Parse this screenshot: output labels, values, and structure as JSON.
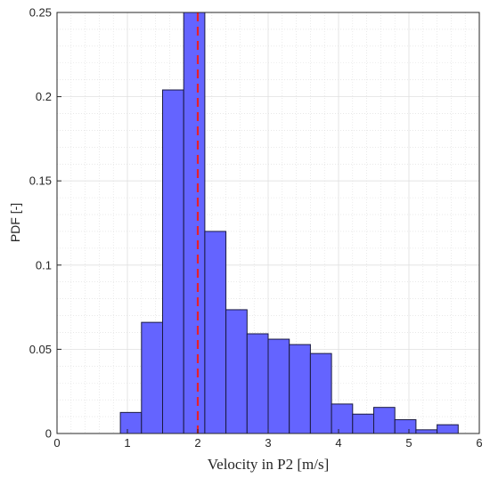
{
  "chart_data": {
    "type": "bar",
    "subtype": "histogram",
    "xlabel": "Velocity in P2 [m/s]",
    "ylabel": "PDF [-]",
    "xlim": [
      0,
      6
    ],
    "ylim": [
      0,
      0.25
    ],
    "xticks": [
      0,
      1,
      2,
      3,
      4,
      5,
      6
    ],
    "yticks": [
      0,
      0.05,
      0.1,
      0.15,
      0.2,
      0.25
    ],
    "xtick_labels": [
      "0",
      "1",
      "2",
      "3",
      "4",
      "5",
      "6"
    ],
    "ytick_labels": [
      "0",
      "0.05",
      "0.1",
      "0.15",
      "0.2",
      "0.25"
    ],
    "grid": true,
    "minor_grid": true,
    "bin_edges": [
      0.9,
      1.2,
      1.5,
      1.8,
      2.1,
      2.4,
      2.7,
      3.0,
      3.3,
      3.6,
      3.9,
      4.2,
      4.5,
      4.8,
      5.1,
      5.4,
      5.7
    ],
    "values": [
      0.0125,
      0.066,
      0.204,
      0.25,
      0.12,
      0.0735,
      0.0592,
      0.056,
      0.0528,
      0.0475,
      0.0175,
      0.0115,
      0.0155,
      0.0082,
      0.0022,
      0.0052
    ],
    "bar_color": "#6464ff",
    "bar_edge_color": "#1a1a40",
    "reference_line": {
      "x": 2.0,
      "color": "#e8202a",
      "style": "dashed"
    }
  }
}
